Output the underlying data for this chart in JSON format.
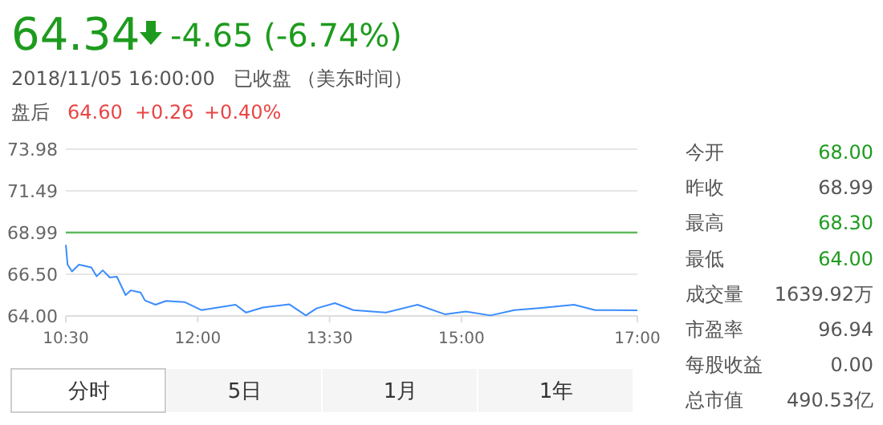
{
  "chart_data": [
    {
      "type": "line",
      "title": "64.34",
      "subtitle": "-4.65 (-6.74%)",
      "annotations": [
        "2018/11/05 16:00:00   已收盘 （美东时间）",
        "盘后",
        "64.60",
        "+0.26",
        "+0.40%",
        "分时",
        "5日",
        "1月",
        "1年"
      ],
      "series": [
        {
          "type": "line",
          "color": "#3b8cff",
          "x": [
            10.5,
            10.52,
            10.57,
            10.65,
            10.79,
            10.85,
            10.92,
            11.0,
            11.08,
            11.18,
            11.24,
            11.35,
            11.4,
            11.52,
            11.64,
            11.85,
            12.04,
            12.43,
            12.55,
            12.74,
            13.04,
            13.23,
            13.35,
            13.56,
            13.77,
            14.14,
            14.5,
            14.81,
            15.05,
            15.33,
            15.6,
            15.91,
            16.28,
            16.52,
            17.0
          ],
          "values": [
            68.25,
            67.07,
            66.66,
            67.07,
            66.9,
            66.37,
            66.73,
            66.3,
            66.35,
            65.25,
            65.53,
            65.4,
            64.93,
            64.67,
            64.9,
            64.83,
            64.35,
            64.67,
            64.2,
            64.5,
            64.7,
            64.03,
            64.45,
            64.77,
            64.35,
            64.2,
            64.67,
            64.1,
            64.26,
            64.03,
            64.35,
            64.48,
            64.67,
            64.35,
            64.34
          ]
        }
      ],
      "xlim": [
        10.5,
        17
      ],
      "xticks": [
        {
          "value": 10.5,
          "label": "10:30"
        },
        {
          "value": 12,
          "label": "12:00"
        },
        {
          "value": 13.5,
          "label": "13:30"
        },
        {
          "value": 15,
          "label": "15:00"
        },
        {
          "value": 17,
          "label": "17:00"
        }
      ],
      "ylim": [
        64,
        73.98
      ],
      "yticks": [
        {
          "value": 64,
          "label": "64.00"
        },
        {
          "value": 66.5,
          "label": "66.50"
        },
        68.99,
        71.49,
        73.98
      ],
      "ref_lines": [
        {
          "axis": "y",
          "value": 68.99,
          "color": "#5cb85c"
        }
      ],
      "grid": "y",
      "marker": "none",
      "line_style": "solid"
    },
    {
      "type": "other",
      "annotations": [
        "今开",
        "68.00",
        "昨收",
        "68.99",
        "最高",
        "68.30",
        "最低",
        "64.00",
        "成交量",
        "1639.92万",
        "市盈率",
        "96.94",
        "每股收益",
        "0.00",
        "总市值",
        "490.53亿"
      ]
    }
  ]
}
